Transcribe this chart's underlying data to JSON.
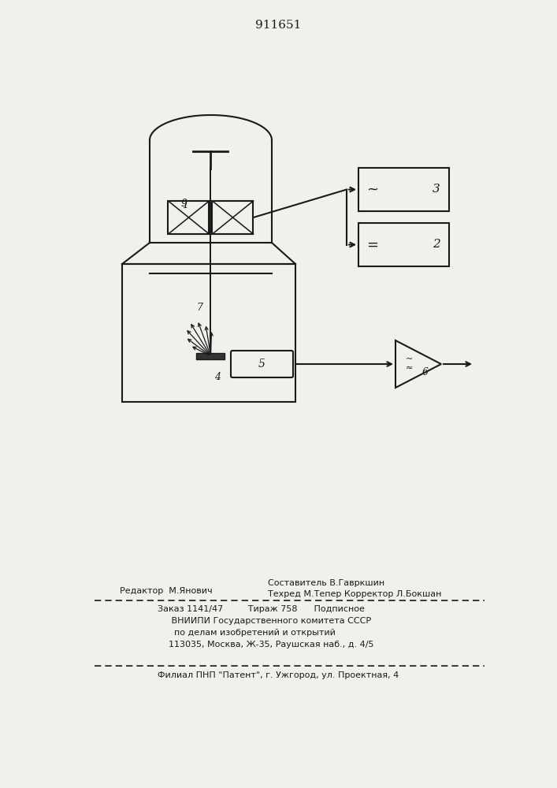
{
  "title": "911651",
  "bg_color": "#f0f0ec",
  "line_color": "#1a1a1a",
  "footer_col1": "Редактор  М.Янович",
  "footer_col2_line1": "Составитель В.Гавркшин",
  "footer_col2_line2": "Техред М.Тепер Корректор Л.Бокшан",
  "footer_b1": "Заказ 1141/47         Тираж 758      Подписное",
  "footer_b2": "     ВНИИПИ Государственного комитета СССР",
  "footer_b3": "      по делам изобретений и открытий",
  "footer_b4": "    113035, Москва, Ж-35, Раушская наб., д. 4/5",
  "footer_last": "Филиал ПНП \"Патент\", г. Ужгород, ул. Проектная, 4"
}
